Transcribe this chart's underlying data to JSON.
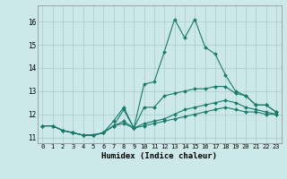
{
  "title": "",
  "xlabel": "Humidex (Indice chaleur)",
  "ylabel": "",
  "background_color": "#cce8e8",
  "plot_bg_color": "#cce8e8",
  "grid_color": "#aacccc",
  "line_color": "#1a7a6a",
  "xlim": [
    -0.5,
    23.5
  ],
  "ylim": [
    10.75,
    16.7
  ],
  "yticks": [
    11,
    12,
    13,
    14,
    15,
    16
  ],
  "xticks": [
    0,
    1,
    2,
    3,
    4,
    5,
    6,
    7,
    8,
    9,
    10,
    11,
    12,
    13,
    14,
    15,
    16,
    17,
    18,
    19,
    20,
    21,
    22,
    23
  ],
  "xtick_labels": [
    "0",
    "1",
    "2",
    "3",
    "4",
    "5",
    "6",
    "7",
    "8",
    "9",
    "10",
    "11",
    "12",
    "13",
    "14",
    "15",
    "16",
    "17",
    "18",
    "19",
    "20",
    "21",
    "22",
    "23"
  ],
  "lines": [
    {
      "x": [
        0,
        1,
        2,
        3,
        4,
        5,
        6,
        7,
        8,
        9,
        10,
        11,
        12,
        13,
        14,
        15,
        16,
        17,
        18,
        19,
        20,
        21,
        22,
        23
      ],
      "y": [
        11.5,
        11.5,
        11.3,
        11.2,
        11.1,
        11.1,
        11.2,
        11.5,
        12.2,
        11.4,
        13.3,
        13.4,
        14.7,
        16.1,
        15.3,
        16.1,
        14.9,
        14.6,
        13.7,
        13.0,
        12.8,
        12.4,
        12.4,
        12.1
      ]
    },
    {
      "x": [
        0,
        1,
        2,
        3,
        4,
        5,
        6,
        7,
        8,
        9,
        10,
        11,
        12,
        13,
        14,
        15,
        16,
        17,
        18,
        19,
        20,
        21,
        22,
        23
      ],
      "y": [
        11.5,
        11.5,
        11.3,
        11.2,
        11.1,
        11.1,
        11.2,
        11.7,
        12.3,
        11.4,
        12.3,
        12.3,
        12.8,
        12.9,
        13.0,
        13.1,
        13.1,
        13.2,
        13.2,
        12.9,
        12.8,
        12.4,
        12.4,
        12.1
      ]
    },
    {
      "x": [
        0,
        1,
        2,
        3,
        4,
        5,
        6,
        7,
        8,
        9,
        10,
        11,
        12,
        13,
        14,
        15,
        16,
        17,
        18,
        19,
        20,
        21,
        22,
        23
      ],
      "y": [
        11.5,
        11.5,
        11.3,
        11.2,
        11.1,
        11.1,
        11.2,
        11.5,
        11.7,
        11.4,
        11.6,
        11.7,
        11.8,
        12.0,
        12.2,
        12.3,
        12.4,
        12.5,
        12.6,
        12.5,
        12.3,
        12.2,
        12.1,
        12.0
      ]
    },
    {
      "x": [
        0,
        1,
        2,
        3,
        4,
        5,
        6,
        7,
        8,
        9,
        10,
        11,
        12,
        13,
        14,
        15,
        16,
        17,
        18,
        19,
        20,
        21,
        22,
        23
      ],
      "y": [
        11.5,
        11.5,
        11.3,
        11.2,
        11.1,
        11.1,
        11.2,
        11.5,
        11.6,
        11.4,
        11.5,
        11.6,
        11.7,
        11.8,
        11.9,
        12.0,
        12.1,
        12.2,
        12.3,
        12.2,
        12.1,
        12.1,
        12.0,
        12.0
      ]
    }
  ]
}
